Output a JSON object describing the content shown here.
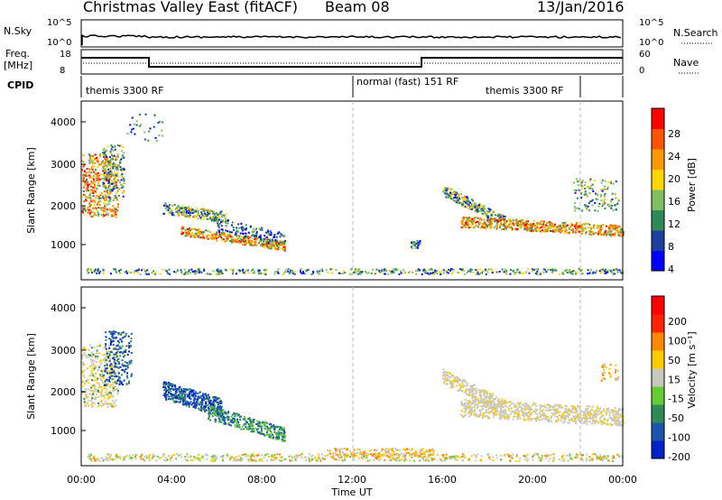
{
  "header": {
    "title": "Christmas Valley East (fitACF)",
    "beam": "Beam 08",
    "date": "13/Jan/2016"
  },
  "summary_panels": {
    "nsky_label": "N.Sky",
    "nsky_left_ticks": [
      "10^5",
      "10^0"
    ],
    "nsearch_label": "N.Search",
    "nsearch_right_ticks": [
      "10^5",
      "10^0"
    ],
    "freq_label_line1": "Freq.",
    "freq_label_line2": "[MHz]",
    "freq_left_ticks": [
      "18",
      "8"
    ],
    "nave_label": "Nave",
    "nave_right_ticks": [
      "60",
      "0"
    ],
    "cpid_label": "CPID",
    "cpid_segments": [
      "themis 3300 RF",
      "normal (fast) 151 RF",
      "themis 3300 RF"
    ]
  },
  "chart_data": [
    {
      "type": "heatmap",
      "name": "power",
      "xlabel": "",
      "ylabel": "Slant Range [km]",
      "yticks": [
        "4000",
        "3000",
        "2000",
        "1000"
      ],
      "colorbar_label": "Power [dB]",
      "colorbar_ticks": [
        "28",
        "24",
        "20",
        "16",
        "12",
        "8",
        "4"
      ],
      "colors": [
        "#0000ff",
        "#1a3fa0",
        "#2e8b57",
        "#7fbf5f",
        "#ffd700",
        "#ff9900",
        "#ff5500",
        "#ff0000"
      ]
    },
    {
      "type": "heatmap",
      "name": "velocity",
      "xlabel": "Time UT",
      "ylabel": "Slant Range [km]",
      "yticks": [
        "4000",
        "3000",
        "2000",
        "1000"
      ],
      "xticks": [
        "00:00",
        "04:00",
        "08:00",
        "12:00",
        "16:00",
        "20:00",
        "00:00"
      ],
      "colorbar_label": "Velocity [m s⁻¹]",
      "colorbar_ticks": [
        "200",
        "100",
        "50",
        "15",
        "-15",
        "-50",
        "-100",
        "-200"
      ],
      "colors": [
        "#0022cc",
        "#1a55b0",
        "#2e8b57",
        "#66cc33",
        "#c8c8c0",
        "#ffcc00",
        "#ff8800",
        "#ff2200",
        "#ff0000"
      ]
    }
  ]
}
